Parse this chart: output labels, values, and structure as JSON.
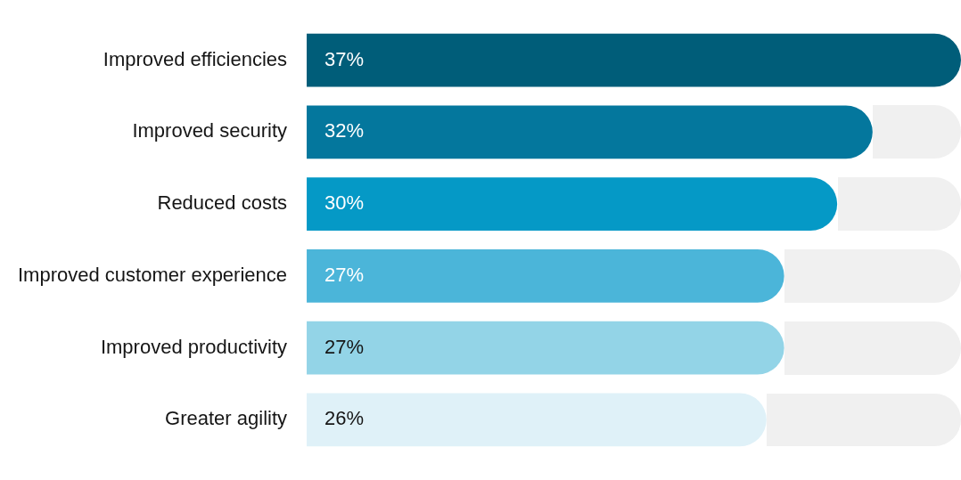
{
  "chart_data": {
    "type": "bar",
    "orientation": "horizontal",
    "categories": [
      "Improved efficiencies",
      "Improved security",
      "Reduced costs",
      "Improved customer experience",
      "Improved productivity",
      "Greater agility"
    ],
    "values": [
      37,
      32,
      30,
      27,
      27,
      26
    ],
    "colors": [
      "#005d79",
      "#04779d",
      "#0599c6",
      "#4bb5d9",
      "#93d4e7",
      "#dff1f8"
    ],
    "value_labels": [
      "37%",
      "32%",
      "30%",
      "27%",
      "27%",
      "26%"
    ],
    "legend": false
  }
}
